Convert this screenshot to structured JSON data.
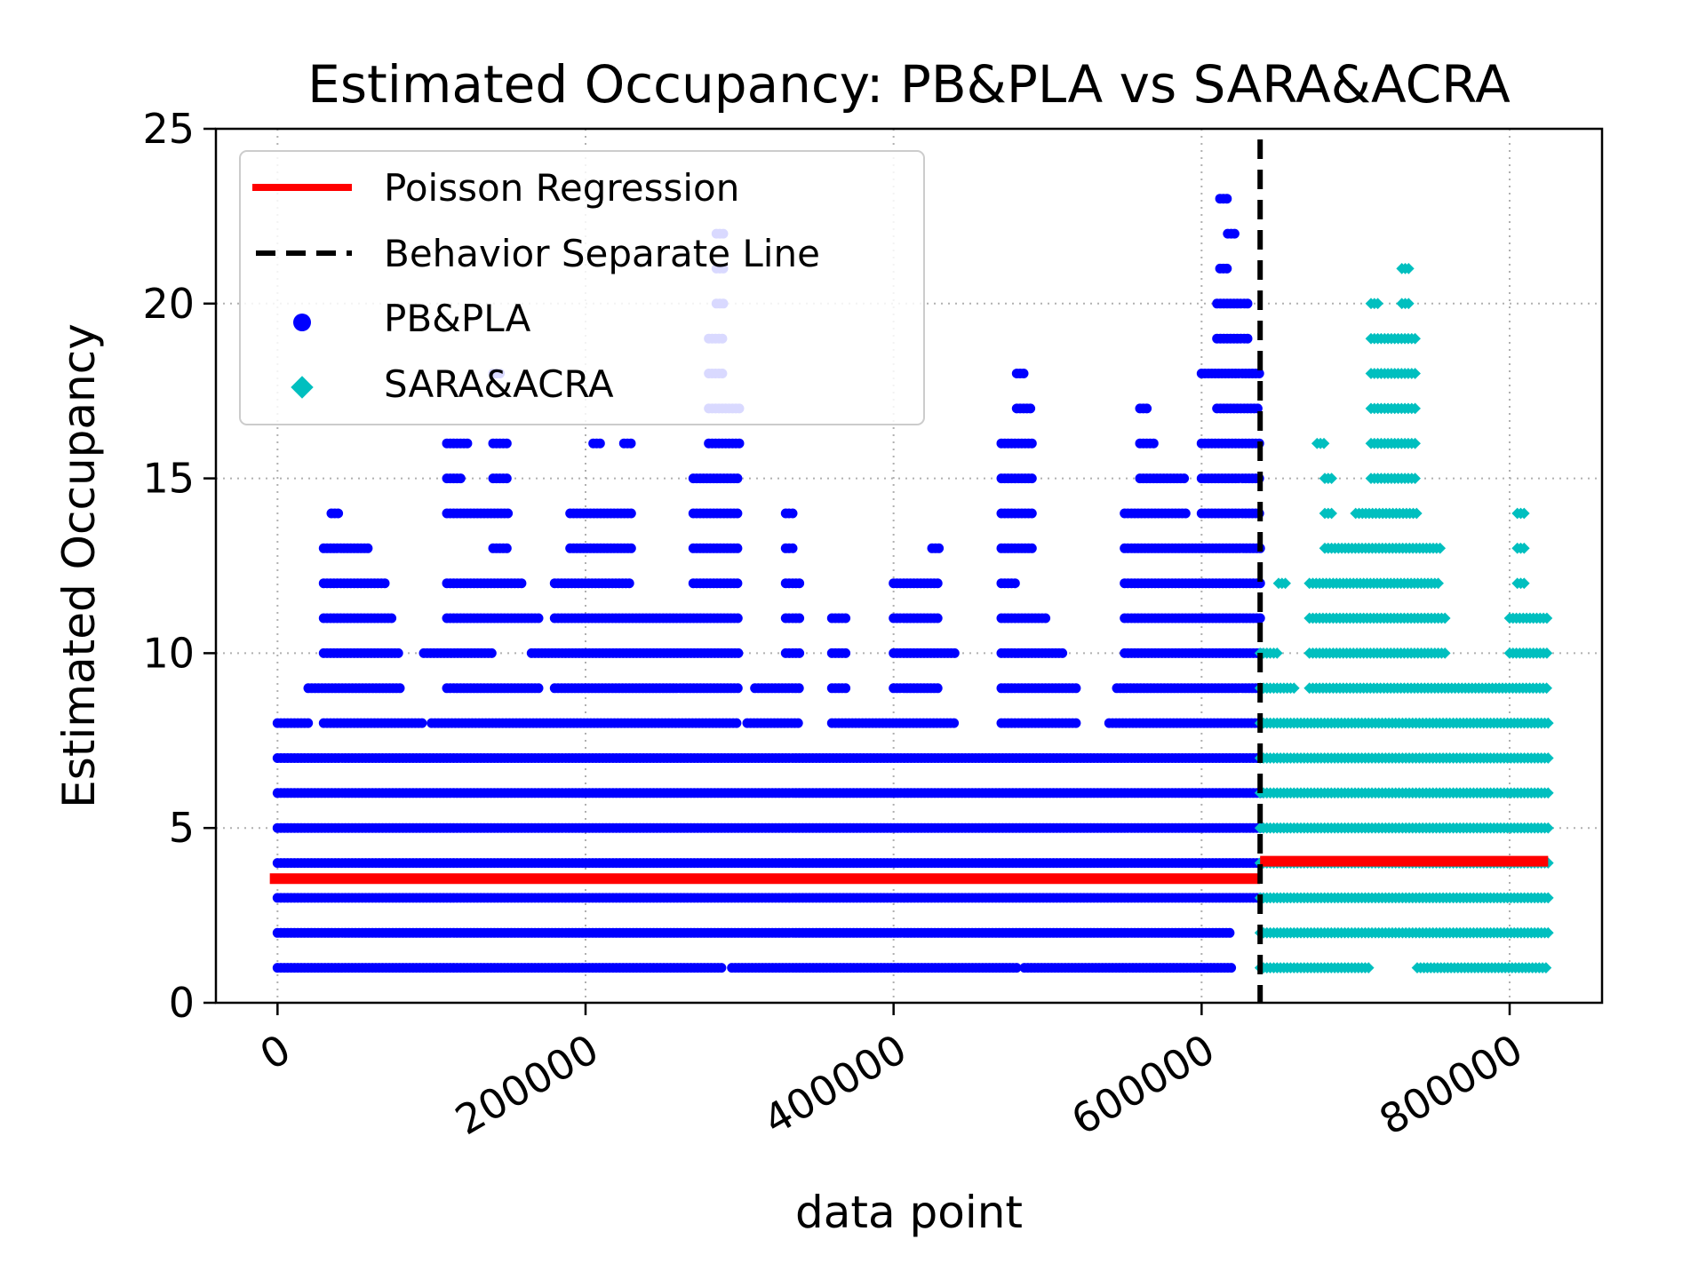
{
  "chart_data": {
    "type": "scatter",
    "title": "Estimated Occupancy: PB&PLA vs SARA&ACRA",
    "xlabel": "data point",
    "ylabel": "Estimated Occupancy",
    "xlim": [
      -40000,
      860000
    ],
    "ylim": [
      0,
      25
    ],
    "xticks": [
      0,
      200000,
      400000,
      600000,
      800000
    ],
    "xtick_labels": [
      "0",
      "200000",
      "400000",
      "600000",
      "800000"
    ],
    "yticks": [
      0,
      5,
      10,
      15,
      20,
      25
    ],
    "ytick_labels": [
      "0",
      "5",
      "10",
      "15",
      "20",
      "25"
    ],
    "grid": true,
    "legend_position": "top-left",
    "separator_x": 638000,
    "series": [
      {
        "name": "Poisson Regression",
        "kind": "line",
        "color": "#ff0000",
        "segments": [
          {
            "x": [
              -5000,
              638000
            ],
            "y": [
              3.55,
              3.55
            ]
          },
          {
            "x": [
              638000,
              825000
            ],
            "y": [
              4.05,
              4.05
            ]
          }
        ]
      },
      {
        "name": "Behavior Separate Line",
        "kind": "vline",
        "color": "#000000"
      },
      {
        "name": "PB&PLA",
        "kind": "scatter",
        "marker": "circle",
        "color": "#0000ff",
        "x_range": [
          0,
          638000
        ],
        "bands": [
          {
            "y": 1,
            "x": [
              [
                0,
                290000
              ],
              [
                295000,
                480000
              ],
              [
                485000,
                620000
              ]
            ]
          },
          {
            "y": 2,
            "x": [
              [
                0,
                620000
              ]
            ]
          },
          {
            "y": 3,
            "x": [
              [
                0,
                638000
              ]
            ]
          },
          {
            "y": 4,
            "x": [
              [
                0,
                638000
              ]
            ]
          },
          {
            "y": 5,
            "x": [
              [
                0,
                638000
              ]
            ]
          },
          {
            "y": 6,
            "x": [
              [
                0,
                638000
              ]
            ]
          },
          {
            "y": 7,
            "x": [
              [
                0,
                638000
              ]
            ]
          },
          {
            "y": 8,
            "x": [
              [
                0,
                20000
              ],
              [
                30000,
                95000
              ],
              [
                100000,
                300000
              ],
              [
                305000,
                340000
              ],
              [
                360000,
                440000
              ],
              [
                470000,
                520000
              ],
              [
                540000,
                638000
              ]
            ]
          },
          {
            "y": 9,
            "x": [
              [
                20000,
                80000
              ],
              [
                110000,
                170000
              ],
              [
                180000,
                300000
              ],
              [
                310000,
                340000
              ],
              [
                360000,
                370000
              ],
              [
                400000,
                430000
              ],
              [
                470000,
                520000
              ],
              [
                545000,
                638000
              ]
            ]
          },
          {
            "y": 10,
            "x": [
              [
                30000,
                80000
              ],
              [
                95000,
                140000
              ],
              [
                165000,
                300000
              ],
              [
                330000,
                340000
              ],
              [
                360000,
                370000
              ],
              [
                400000,
                440000
              ],
              [
                470000,
                510000
              ],
              [
                550000,
                638000
              ]
            ]
          },
          {
            "y": 11,
            "x": [
              [
                30000,
                75000
              ],
              [
                110000,
                170000
              ],
              [
                180000,
                300000
              ],
              [
                330000,
                340000
              ],
              [
                360000,
                370000
              ],
              [
                400000,
                430000
              ],
              [
                470000,
                500000
              ],
              [
                550000,
                638000
              ]
            ]
          },
          {
            "y": 12,
            "x": [
              [
                30000,
                70000
              ],
              [
                110000,
                160000
              ],
              [
                180000,
                230000
              ],
              [
                270000,
                300000
              ],
              [
                330000,
                340000
              ],
              [
                400000,
                430000
              ],
              [
                470000,
                480000
              ],
              [
                550000,
                638000
              ]
            ]
          },
          {
            "y": 13,
            "x": [
              [
                30000,
                60000
              ],
              [
                140000,
                150000
              ],
              [
                190000,
                230000
              ],
              [
                270000,
                300000
              ],
              [
                330000,
                335000
              ],
              [
                425000,
                430000
              ],
              [
                470000,
                490000
              ],
              [
                550000,
                638000
              ]
            ]
          },
          {
            "y": 14,
            "x": [
              [
                35000,
                40000
              ],
              [
                110000,
                150000
              ],
              [
                190000,
                230000
              ],
              [
                270000,
                300000
              ],
              [
                330000,
                335000
              ],
              [
                470000,
                490000
              ],
              [
                550000,
                590000
              ],
              [
                600000,
                638000
              ]
            ]
          },
          {
            "y": 15,
            "x": [
              [
                110000,
                120000
              ],
              [
                140000,
                150000
              ],
              [
                270000,
                300000
              ],
              [
                470000,
                490000
              ],
              [
                560000,
                590000
              ],
              [
                600000,
                638000
              ]
            ]
          },
          {
            "y": 16,
            "x": [
              [
                110000,
                125000
              ],
              [
                140000,
                150000
              ],
              [
                205000,
                210000
              ],
              [
                225000,
                230000
              ],
              [
                280000,
                300000
              ],
              [
                470000,
                490000
              ],
              [
                560000,
                570000
              ],
              [
                600000,
                638000
              ]
            ]
          },
          {
            "y": 17,
            "x": [
              [
                280000,
                300000
              ],
              [
                480000,
                490000
              ],
              [
                560000,
                565000
              ],
              [
                610000,
                638000
              ]
            ]
          },
          {
            "y": 18,
            "x": [
              [
                140000,
                145000
              ],
              [
                280000,
                290000
              ],
              [
                480000,
                485000
              ],
              [
                600000,
                638000
              ]
            ]
          },
          {
            "y": 19,
            "x": [
              [
                280000,
                290000
              ],
              [
                610000,
                630000
              ]
            ]
          },
          {
            "y": 20,
            "x": [
              [
                285000,
                290000
              ],
              [
                610000,
                630000
              ]
            ]
          },
          {
            "y": 21,
            "x": [
              [
                285000,
                290000
              ],
              [
                612000,
                617000
              ]
            ]
          },
          {
            "y": 22,
            "x": [
              [
                285000,
                290000
              ],
              [
                617000,
                622000
              ]
            ]
          },
          {
            "y": 23,
            "x": [
              [
                612000,
                617000
              ]
            ]
          }
        ]
      },
      {
        "name": "SARA&ACRA",
        "kind": "scatter",
        "marker": "diamond",
        "color": "#00bfbf",
        "x_range": [
          638000,
          825000
        ],
        "bands": [
          {
            "y": 1,
            "x": [
              [
                638000,
                710000
              ],
              [
                740000,
                825000
              ]
            ]
          },
          {
            "y": 2,
            "x": [
              [
                638000,
                825000
              ]
            ]
          },
          {
            "y": 3,
            "x": [
              [
                638000,
                825000
              ]
            ]
          },
          {
            "y": 4,
            "x": [
              [
                638000,
                825000
              ]
            ]
          },
          {
            "y": 5,
            "x": [
              [
                638000,
                825000
              ]
            ]
          },
          {
            "y": 6,
            "x": [
              [
                638000,
                825000
              ]
            ]
          },
          {
            "y": 7,
            "x": [
              [
                638000,
                825000
              ]
            ]
          },
          {
            "y": 8,
            "x": [
              [
                638000,
                825000
              ]
            ]
          },
          {
            "y": 9,
            "x": [
              [
                638000,
                660000
              ],
              [
                670000,
                825000
              ]
            ]
          },
          {
            "y": 10,
            "x": [
              [
                638000,
                650000
              ],
              [
                670000,
                760000
              ],
              [
                800000,
                825000
              ]
            ]
          },
          {
            "y": 11,
            "x": [
              [
                670000,
                760000
              ],
              [
                800000,
                825000
              ]
            ]
          },
          {
            "y": 12,
            "x": [
              [
                650000,
                655000
              ],
              [
                670000,
                755000
              ],
              [
                805000,
                810000
              ]
            ]
          },
          {
            "y": 13,
            "x": [
              [
                680000,
                755000
              ],
              [
                805000,
                810000
              ]
            ]
          },
          {
            "y": 14,
            "x": [
              [
                680000,
                685000
              ],
              [
                700000,
                740000
              ],
              [
                805000,
                810000
              ]
            ]
          },
          {
            "y": 15,
            "x": [
              [
                680000,
                685000
              ],
              [
                710000,
                740000
              ]
            ]
          },
          {
            "y": 16,
            "x": [
              [
                675000,
                680000
              ],
              [
                710000,
                740000
              ]
            ]
          },
          {
            "y": 17,
            "x": [
              [
                710000,
                740000
              ]
            ]
          },
          {
            "y": 18,
            "x": [
              [
                710000,
                740000
              ]
            ]
          },
          {
            "y": 19,
            "x": [
              [
                710000,
                740000
              ]
            ]
          },
          {
            "y": 20,
            "x": [
              [
                710000,
                715000
              ],
              [
                730000,
                735000
              ]
            ]
          },
          {
            "y": 21,
            "x": [
              [
                730000,
                735000
              ]
            ]
          }
        ]
      }
    ]
  }
}
